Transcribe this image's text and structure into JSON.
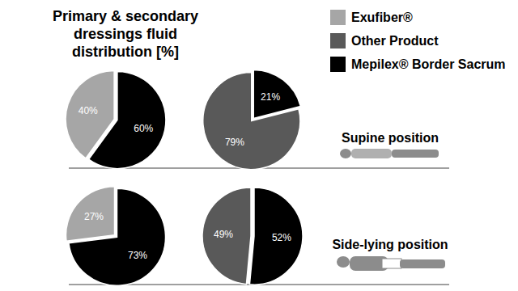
{
  "chart_data": [
    {
      "type": "pie",
      "title": "Primary & secondary dressings fluid distribution [%]",
      "categories": [
        "Mepilex® Border Sacrum",
        "Exufiber®"
      ],
      "values": [
        60,
        40
      ],
      "value_labels": [
        "60%",
        "40%"
      ],
      "colors": [
        "#000000",
        "#a6a6a6"
      ],
      "data_labels": true,
      "legend": "top-right"
    },
    {
      "type": "pie",
      "categories": [
        "Mepilex® Border Sacrum",
        "Other Product"
      ],
      "values": [
        21,
        79
      ],
      "value_labels": [
        "21%",
        "79%"
      ],
      "colors": [
        "#000000",
        "#595959"
      ],
      "data_labels": true,
      "annotations": [
        "Supine position"
      ]
    },
    {
      "type": "pie",
      "categories": [
        "Mepilex® Border Sacrum",
        "Exufiber®"
      ],
      "values": [
        73,
        27
      ],
      "value_labels": [
        "73%",
        "27%"
      ],
      "colors": [
        "#000000",
        "#a6a6a6"
      ],
      "data_labels": true
    },
    {
      "type": "pie",
      "categories": [
        "Mepilex® Border Sacrum",
        "Other Product"
      ],
      "values": [
        52,
        49
      ],
      "value_labels": [
        "52%",
        "49%"
      ],
      "colors": [
        "#000000",
        "#595959"
      ],
      "data_labels": true,
      "annotations": [
        "Side-lying position"
      ]
    }
  ]
}
